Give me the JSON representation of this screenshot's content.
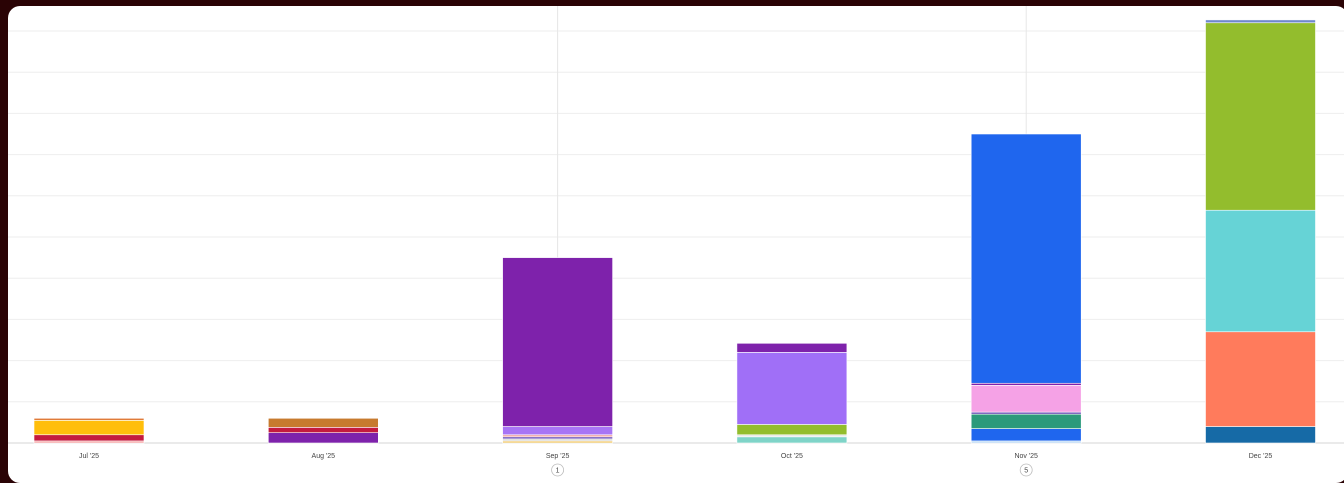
{
  "chart_data": {
    "type": "bar",
    "stacked": true,
    "categories": [
      "Jul '25",
      "Aug '25",
      "Sep '25",
      "Oct '25",
      "Nov '25",
      "Dec '25"
    ],
    "ylim": [
      0,
      10
    ],
    "grid": true,
    "stacks": [
      [
        {
          "value": 0.05,
          "color": "#f4a3a3"
        },
        {
          "value": 0.15,
          "color": "#c41a3e"
        },
        {
          "value": 0.35,
          "color": "#ffbe0b"
        },
        {
          "value": 0.05,
          "color": "#e07b39"
        }
      ],
      [
        {
          "value": 0.25,
          "color": "#7e22ab"
        },
        {
          "value": 0.13,
          "color": "#c41a3e"
        },
        {
          "value": 0.22,
          "color": "#c77a2e"
        }
      ],
      [
        {
          "value": 0.05,
          "color": "#f0c96b"
        },
        {
          "value": 0.05,
          "color": "#d6d6d6"
        },
        {
          "value": 0.05,
          "color": "#6b4fb8"
        },
        {
          "value": 0.05,
          "color": "#f2a7a7"
        },
        {
          "value": 0.2,
          "color": "#a874f5"
        },
        {
          "value": 4.1,
          "color": "#7e22ab"
        }
      ],
      [
        {
          "value": 0.15,
          "color": "#7fd4c8"
        },
        {
          "value": 0.05,
          "color": "#e8e8e8"
        },
        {
          "value": 0.25,
          "color": "#93bd2d"
        },
        {
          "value": 1.75,
          "color": "#a06ff7"
        },
        {
          "value": 0.22,
          "color": "#7e22ab"
        }
      ],
      [
        {
          "value": 0.05,
          "color": "#b9d7f5"
        },
        {
          "value": 0.3,
          "color": "#1f66ee"
        },
        {
          "value": 0.35,
          "color": "#2b9a7b"
        },
        {
          "value": 0.05,
          "color": "#6b4fb8"
        },
        {
          "value": 0.65,
          "color": "#f5a2e6"
        },
        {
          "value": 0.05,
          "color": "#7e22ab"
        },
        {
          "value": 6.05,
          "color": "#1f66ee"
        }
      ],
      [
        {
          "value": 0.4,
          "color": "#166aa6"
        },
        {
          "value": 2.3,
          "color": "#ff7b5c"
        },
        {
          "value": 2.95,
          "color": "#66d3d6"
        },
        {
          "value": 4.55,
          "color": "#93bd2d"
        },
        {
          "value": 0.07,
          "color": "#6f88cc"
        }
      ]
    ],
    "markers": [
      {
        "category": "Sep '25",
        "label": "1"
      },
      {
        "category": "Nov '25",
        "label": "5"
      }
    ]
  }
}
